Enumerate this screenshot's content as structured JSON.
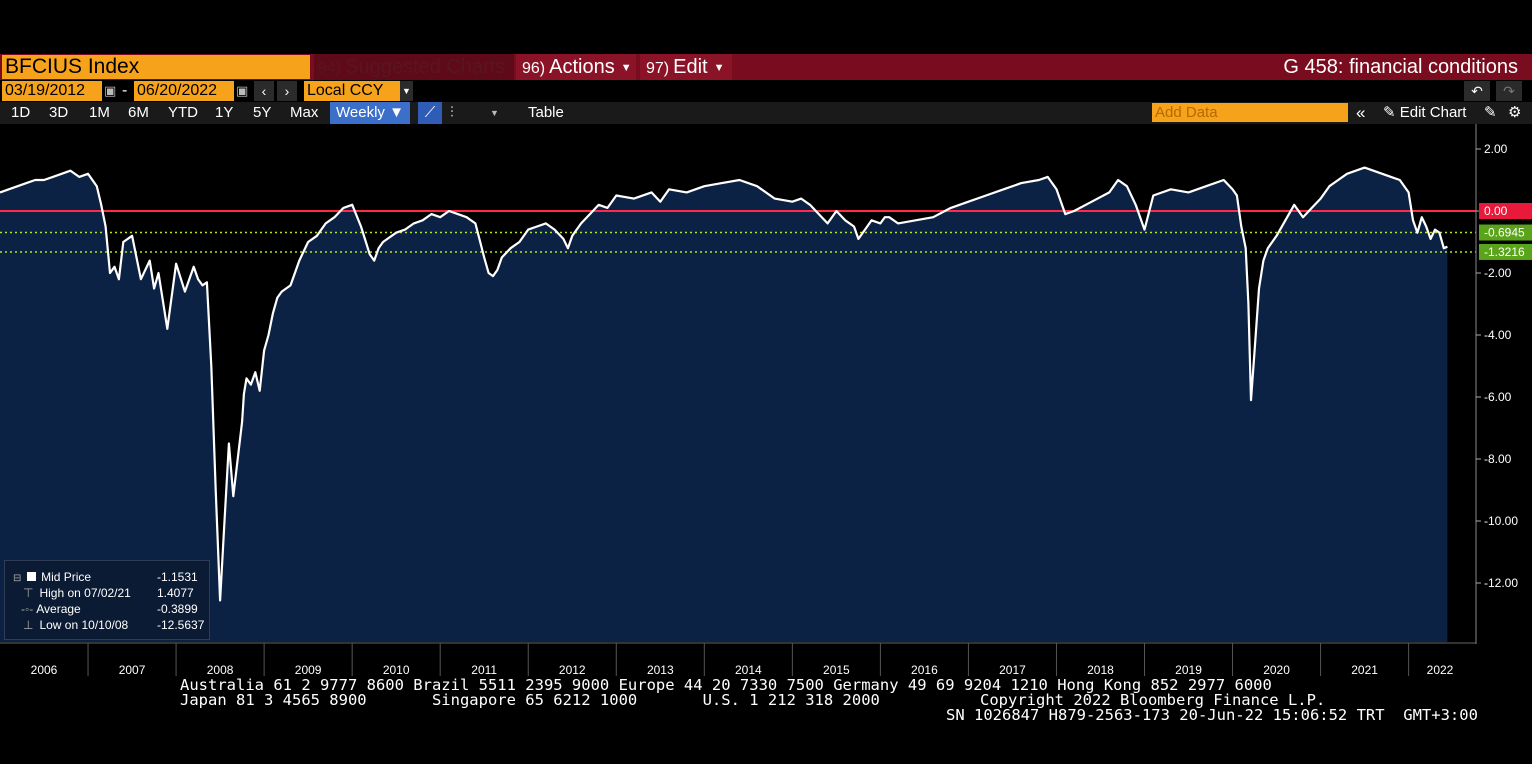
{
  "header": {
    "ticker": "BFCIUS Index",
    "suggested_num": "94)",
    "suggested_label": "Suggested Charts",
    "actions_num": "96)",
    "actions_label": "Actions",
    "edit_num": "97)",
    "edit_label": "Edit",
    "graph_title": "G 458: financial conditions"
  },
  "date_range": {
    "start": "03/19/2012",
    "separator": "-",
    "end": "06/20/2022",
    "currency": "Local CCY"
  },
  "toolbar": {
    "periods": [
      "1D",
      "3D",
      "1M",
      "6M",
      "YTD",
      "1Y",
      "5Y",
      "Max"
    ],
    "frequency": "Weekly ▼",
    "table_label": "Table",
    "add_data_placeholder": "Add Data",
    "edit_chart_label": "Edit Chart"
  },
  "legend": {
    "rows": [
      {
        "label": "Mid Price",
        "value": "-1.1531"
      },
      {
        "label": "High on 07/02/21",
        "value": "1.4077"
      },
      {
        "label": "Average",
        "value": "-0.3899"
      },
      {
        "label": "Low on 10/10/08",
        "value": "-12.5637"
      }
    ]
  },
  "chart_data": {
    "type": "area",
    "title": "",
    "xlabel": "",
    "ylabel": "",
    "x_tick_labels": [
      "2006",
      "2007",
      "2008",
      "2009",
      "2010",
      "2011",
      "2012",
      "2013",
      "2014",
      "2015",
      "2016",
      "2017",
      "2018",
      "2019",
      "2020",
      "2021",
      "2022"
    ],
    "y_tick_labels": [
      "2.00",
      "0.00",
      "-2.00",
      "-4.00",
      "-6.00",
      "-8.00",
      "-10.00",
      "-12.00"
    ],
    "ylim": [
      -14,
      2.6
    ],
    "xlim": [
      2006.0,
      2022.47
    ],
    "grid": false,
    "reference_lines": [
      {
        "value": 0.0,
        "label": "0.00",
        "color": "#ff2a4a",
        "style": "solid"
      },
      {
        "value": -0.6945,
        "label": "-0.6945",
        "color": "#b5e61d",
        "style": "dotted"
      },
      {
        "value": -1.3216,
        "label": "-1.3216",
        "color": "#b5e61d",
        "style": "dotted"
      }
    ],
    "series": [
      {
        "name": "Mid Price",
        "x": [
          2006.0,
          2006.1,
          2006.2,
          2006.3,
          2006.4,
          2006.5,
          2006.6,
          2006.7,
          2006.8,
          2006.9,
          2007.0,
          2007.05,
          2007.1,
          2007.15,
          2007.2,
          2007.25,
          2007.3,
          2007.35,
          2007.4,
          2007.5,
          2007.6,
          2007.7,
          2007.75,
          2007.8,
          2007.9,
          2008.0,
          2008.1,
          2008.15,
          2008.2,
          2008.25,
          2008.3,
          2008.35,
          2008.4,
          2008.45,
          2008.5,
          2008.55,
          2008.6,
          2008.65,
          2008.7,
          2008.75,
          2008.77,
          2008.8,
          2008.85,
          2008.9,
          2008.95,
          2009.0,
          2009.05,
          2009.1,
          2009.15,
          2009.2,
          2009.3,
          2009.4,
          2009.5,
          2009.6,
          2009.7,
          2009.8,
          2009.9,
          2010.0,
          2010.1,
          2010.2,
          2010.25,
          2010.3,
          2010.35,
          2010.4,
          2010.5,
          2010.6,
          2010.7,
          2010.8,
          2010.9,
          2011.0,
          2011.1,
          2011.2,
          2011.3,
          2011.4,
          2011.5,
          2011.55,
          2011.6,
          2011.65,
          2011.7,
          2011.8,
          2011.9,
          2012.0,
          2012.1,
          2012.2,
          2012.3,
          2012.4,
          2012.45,
          2012.5,
          2012.6,
          2012.7,
          2012.8,
          2012.9,
          2013.0,
          2013.2,
          2013.4,
          2013.5,
          2013.6,
          2013.8,
          2014.0,
          2014.2,
          2014.4,
          2014.6,
          2014.8,
          2015.0,
          2015.1,
          2015.2,
          2015.3,
          2015.4,
          2015.5,
          2015.6,
          2015.7,
          2015.75,
          2015.8,
          2015.9,
          2016.0,
          2016.05,
          2016.1,
          2016.2,
          2016.4,
          2016.6,
          2016.8,
          2017.0,
          2017.2,
          2017.4,
          2017.6,
          2017.8,
          2017.9,
          2018.0,
          2018.1,
          2018.2,
          2018.4,
          2018.6,
          2018.7,
          2018.8,
          2018.9,
          2019.0,
          2019.1,
          2019.3,
          2019.5,
          2019.7,
          2019.9,
          2020.0,
          2020.05,
          2020.1,
          2020.15,
          2020.18,
          2020.21,
          2020.25,
          2020.3,
          2020.35,
          2020.4,
          2020.5,
          2020.6,
          2020.7,
          2020.8,
          2020.9,
          2021.0,
          2021.1,
          2021.2,
          2021.3,
          2021.4,
          2021.5,
          2021.6,
          2021.7,
          2021.8,
          2021.9,
          2022.0,
          2022.05,
          2022.1,
          2022.15,
          2022.2,
          2022.25,
          2022.3,
          2022.35,
          2022.4,
          2022.44
        ],
        "y": [
          0.6,
          0.7,
          0.8,
          0.9,
          1.0,
          1.0,
          1.1,
          1.2,
          1.3,
          1.1,
          1.2,
          1.0,
          0.8,
          0.2,
          -0.5,
          -2.0,
          -1.8,
          -2.2,
          -1.0,
          -0.8,
          -2.2,
          -1.6,
          -2.5,
          -2.0,
          -3.8,
          -1.7,
          -2.6,
          -2.2,
          -1.8,
          -2.2,
          -2.4,
          -2.3,
          -5.0,
          -9.0,
          -12.56,
          -10.0,
          -7.5,
          -9.2,
          -8.0,
          -6.8,
          -5.9,
          -5.4,
          -5.6,
          -5.2,
          -5.8,
          -4.5,
          -4.0,
          -3.3,
          -2.8,
          -2.6,
          -2.4,
          -1.6,
          -1.0,
          -0.8,
          -0.4,
          -0.2,
          0.1,
          0.2,
          -0.5,
          -1.4,
          -1.6,
          -1.2,
          -1.0,
          -0.9,
          -0.7,
          -0.6,
          -0.4,
          -0.3,
          -0.1,
          -0.2,
          0.0,
          -0.1,
          -0.2,
          -0.4,
          -1.5,
          -2.0,
          -2.1,
          -1.9,
          -1.5,
          -1.2,
          -1.0,
          -0.6,
          -0.5,
          -0.4,
          -0.6,
          -0.9,
          -1.2,
          -0.8,
          -0.4,
          -0.1,
          0.2,
          0.1,
          0.5,
          0.4,
          0.6,
          0.3,
          0.7,
          0.6,
          0.8,
          0.9,
          1.0,
          0.8,
          0.4,
          0.3,
          0.4,
          0.2,
          -0.1,
          -0.4,
          0.0,
          -0.3,
          -0.5,
          -0.9,
          -0.7,
          -0.3,
          -0.4,
          -0.2,
          -0.2,
          -0.4,
          -0.3,
          -0.2,
          0.1,
          0.3,
          0.5,
          0.7,
          0.9,
          1.0,
          1.1,
          0.7,
          -0.1,
          0.0,
          0.3,
          0.6,
          1.0,
          0.8,
          0.2,
          -0.6,
          0.5,
          0.7,
          0.6,
          0.8,
          1.0,
          0.7,
          0.5,
          -0.5,
          -1.2,
          -3.0,
          -6.1,
          -4.5,
          -2.5,
          -1.6,
          -1.2,
          -0.8,
          -0.3,
          0.2,
          -0.2,
          0.1,
          0.4,
          0.8,
          1.0,
          1.2,
          1.3,
          1.4,
          1.3,
          1.2,
          1.1,
          1.0,
          0.6,
          -0.3,
          -0.7,
          -0.2,
          -0.5,
          -0.9,
          -0.6,
          -0.7,
          -1.2,
          -1.15
        ]
      }
    ]
  },
  "footer": {
    "line1": "Australia 61 2 9777 8600 Brazil 5511 2395 9000 Europe 44 20 7330 7500 Germany 49 69 9204 1210 Hong Kong 852 2977 6000",
    "line2a": "Japan 81 3 4565 8900       Singapore 65 6212 1000       U.S. 1 212 318 2000",
    "line2b": "Copyright 2022 Bloomberg Finance L.P.",
    "line3": "SN 1026847 H879-2563-173 20-Jun-22 15:06:52 TRT  GMT+3:00"
  },
  "colors": {
    "area_fill": "#0c2244",
    "line": "#ffffff",
    "accent_orange": "#f7a21b",
    "header_red": "#7a0c1f"
  }
}
